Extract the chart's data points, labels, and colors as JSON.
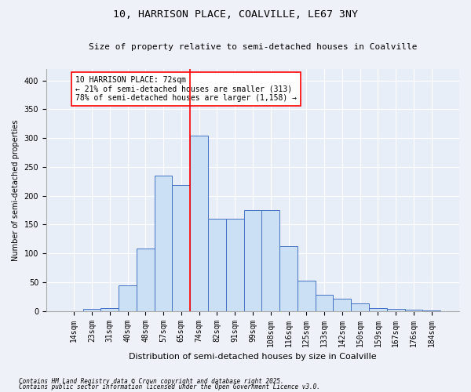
{
  "title1": "10, HARRISON PLACE, COALVILLE, LE67 3NY",
  "title2": "Size of property relative to semi-detached houses in Coalville",
  "xlabel": "Distribution of semi-detached houses by size in Coalville",
  "ylabel": "Number of semi-detached properties",
  "categories": [
    "14sqm",
    "23sqm",
    "31sqm",
    "40sqm",
    "48sqm",
    "57sqm",
    "65sqm",
    "74sqm",
    "82sqm",
    "91sqm",
    "99sqm",
    "108sqm",
    "116sqm",
    "125sqm",
    "133sqm",
    "142sqm",
    "150sqm",
    "159sqm",
    "167sqm",
    "176sqm",
    "184sqm"
  ],
  "values": [
    0,
    4,
    5,
    45,
    108,
    235,
    218,
    305,
    160,
    160,
    175,
    175,
    112,
    53,
    28,
    22,
    13,
    5,
    4,
    2,
    1
  ],
  "bar_fill": "#cce0f5",
  "bar_edge": "#4472c4",
  "red_line_x": 7.0,
  "annotation_text": "10 HARRISON PLACE: 72sqm\n← 21% of semi-detached houses are smaller (313)\n78% of semi-detached houses are larger (1,158) →",
  "annotation_box_color": "#ff0000",
  "footnote1": "Contains HM Land Registry data © Crown copyright and database right 2025.",
  "footnote2": "Contains public sector information licensed under the Open Government Licence v3.0.",
  "bg_color": "#eef2f8",
  "plot_bg": "#e8eef8",
  "ylim": [
    0,
    420
  ],
  "yticks": [
    0,
    50,
    100,
    150,
    200,
    250,
    300,
    350,
    400
  ],
  "title1_fontsize": 9.5,
  "title2_fontsize": 8,
  "ylabel_fontsize": 7,
  "xlabel_fontsize": 8,
  "tick_fontsize": 7,
  "footnote_fontsize": 5.5
}
